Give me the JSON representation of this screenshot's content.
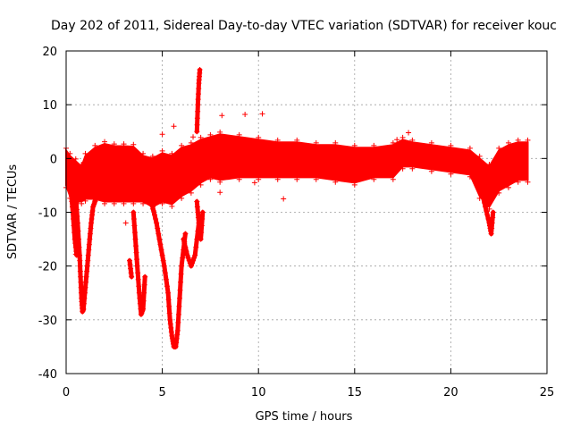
{
  "chart_data": {
    "type": "scatter",
    "title": "Day 202 of 2011, Sidereal Day-to-day VTEC variation (SDTVAR) for receiver kouc",
    "xlabel": "GPS time / hours",
    "ylabel": "SDTVAR / TECUs",
    "xlim": [
      0,
      25
    ],
    "ylim": [
      -40,
      20
    ],
    "xticks": [
      0,
      5,
      10,
      15,
      20,
      25
    ],
    "xtick_labels": [
      "0",
      "5",
      "10",
      "15",
      "20",
      "25"
    ],
    "yticks": [
      -40,
      -30,
      -20,
      -10,
      0,
      10,
      20
    ],
    "ytick_labels": [
      "-40",
      "-30",
      "-20",
      "-10",
      "0",
      "10",
      "20"
    ],
    "grid": true,
    "marker": "+",
    "color": "#ff0000",
    "band": {
      "x": [
        0.0,
        0.2,
        0.5,
        0.8,
        1.0,
        1.5,
        2.0,
        2.5,
        3.0,
        3.5,
        4.0,
        4.5,
        5.0,
        5.5,
        6.0,
        6.5,
        7.0,
        7.5,
        8.0,
        9.0,
        10.0,
        11.0,
        12.0,
        13.0,
        14.0,
        15.0,
        16.0,
        17.0,
        17.5,
        18.0,
        19.0,
        20.0,
        21.0,
        21.5,
        22.0,
        22.5,
        23.0,
        23.5,
        24.0
      ],
      "upper": [
        1.5,
        0.5,
        -0.5,
        -1.5,
        0.5,
        2.0,
        2.7,
        2.3,
        2.3,
        2.2,
        0.5,
        0.0,
        1.0,
        0.5,
        2.0,
        2.5,
        3.5,
        4.0,
        4.5,
        4.0,
        3.5,
        3.0,
        3.0,
        2.5,
        2.5,
        2.0,
        2.0,
        2.5,
        3.5,
        3.0,
        2.5,
        2.0,
        1.5,
        0.0,
        -1.5,
        1.5,
        2.5,
        3.0,
        3.0
      ],
      "lower": [
        -5.0,
        -7.0,
        -8.0,
        -8.0,
        -7.5,
        -7.5,
        -8.0,
        -8.0,
        -8.0,
        -8.0,
        -8.0,
        -9.0,
        -8.0,
        -8.5,
        -7.0,
        -6.0,
        -4.5,
        -3.5,
        -4.0,
        -3.5,
        -3.5,
        -3.5,
        -3.5,
        -3.5,
        -4.0,
        -4.5,
        -3.5,
        -3.5,
        -1.5,
        -1.5,
        -2.0,
        -2.5,
        -3.0,
        -7.0,
        -9.0,
        -6.0,
        -5.0,
        -4.0,
        -4.0
      ]
    },
    "excursions": [
      {
        "x": [
          0.5,
          0.6,
          0.7,
          0.75,
          0.8,
          0.85,
          0.9,
          1.0,
          1.1,
          1.2,
          1.3,
          1.4,
          1.5,
          1.6
        ],
        "y": [
          -7,
          -12,
          -18,
          -22,
          -26,
          -28.5,
          -28,
          -24,
          -20,
          -16,
          -12,
          -9,
          -8,
          -7
        ]
      },
      {
        "x": [
          0.25,
          0.35,
          0.45,
          0.55
        ],
        "y": [
          -6,
          -10,
          -15,
          -18
        ]
      },
      {
        "x": [
          3.5,
          3.6,
          3.7,
          3.8,
          3.9,
          4.0,
          4.1
        ],
        "y": [
          -10,
          -15,
          -20,
          -25,
          -29,
          -28,
          -22
        ]
      },
      {
        "x": [
          3.3,
          3.4
        ],
        "y": [
          -19,
          -22
        ]
      },
      {
        "x": [
          4.5,
          4.7,
          4.9,
          5.1,
          5.3,
          5.4,
          5.5,
          5.6,
          5.7,
          5.8,
          5.9,
          6.0,
          6.2
        ],
        "y": [
          -9,
          -12,
          -16,
          -20,
          -25,
          -30,
          -33,
          -35,
          -35,
          -32,
          -26,
          -20,
          -14
        ]
      },
      {
        "x": [
          6.1,
          6.3,
          6.5,
          6.7,
          6.9
        ],
        "y": [
          -15,
          -18,
          -20,
          -18,
          -12
        ]
      },
      {
        "x": [
          6.8,
          6.9,
          7.0,
          7.1
        ],
        "y": [
          -8,
          -12,
          -15,
          -10
        ]
      },
      {
        "x": [
          21.6,
          21.8,
          22.0,
          22.1,
          22.2
        ],
        "y": [
          -6,
          -9,
          -12,
          -14,
          -10
        ]
      },
      {
        "x": [
          6.8,
          6.85,
          6.9,
          6.95
        ],
        "y": [
          5,
          10,
          14,
          16.5
        ]
      }
    ],
    "outliers": {
      "x": [
        3.1,
        5.0,
        5.6,
        6.6,
        8.1,
        9.3,
        9.8,
        10.2,
        11.3,
        17.8,
        0.5,
        8.0,
        17.2
      ],
      "y": [
        -12,
        4.5,
        6.0,
        4.0,
        8.0,
        8.2,
        -4.5,
        8.3,
        -7.5,
        4.8,
        -17.8,
        -6.3,
        3.5
      ]
    }
  }
}
